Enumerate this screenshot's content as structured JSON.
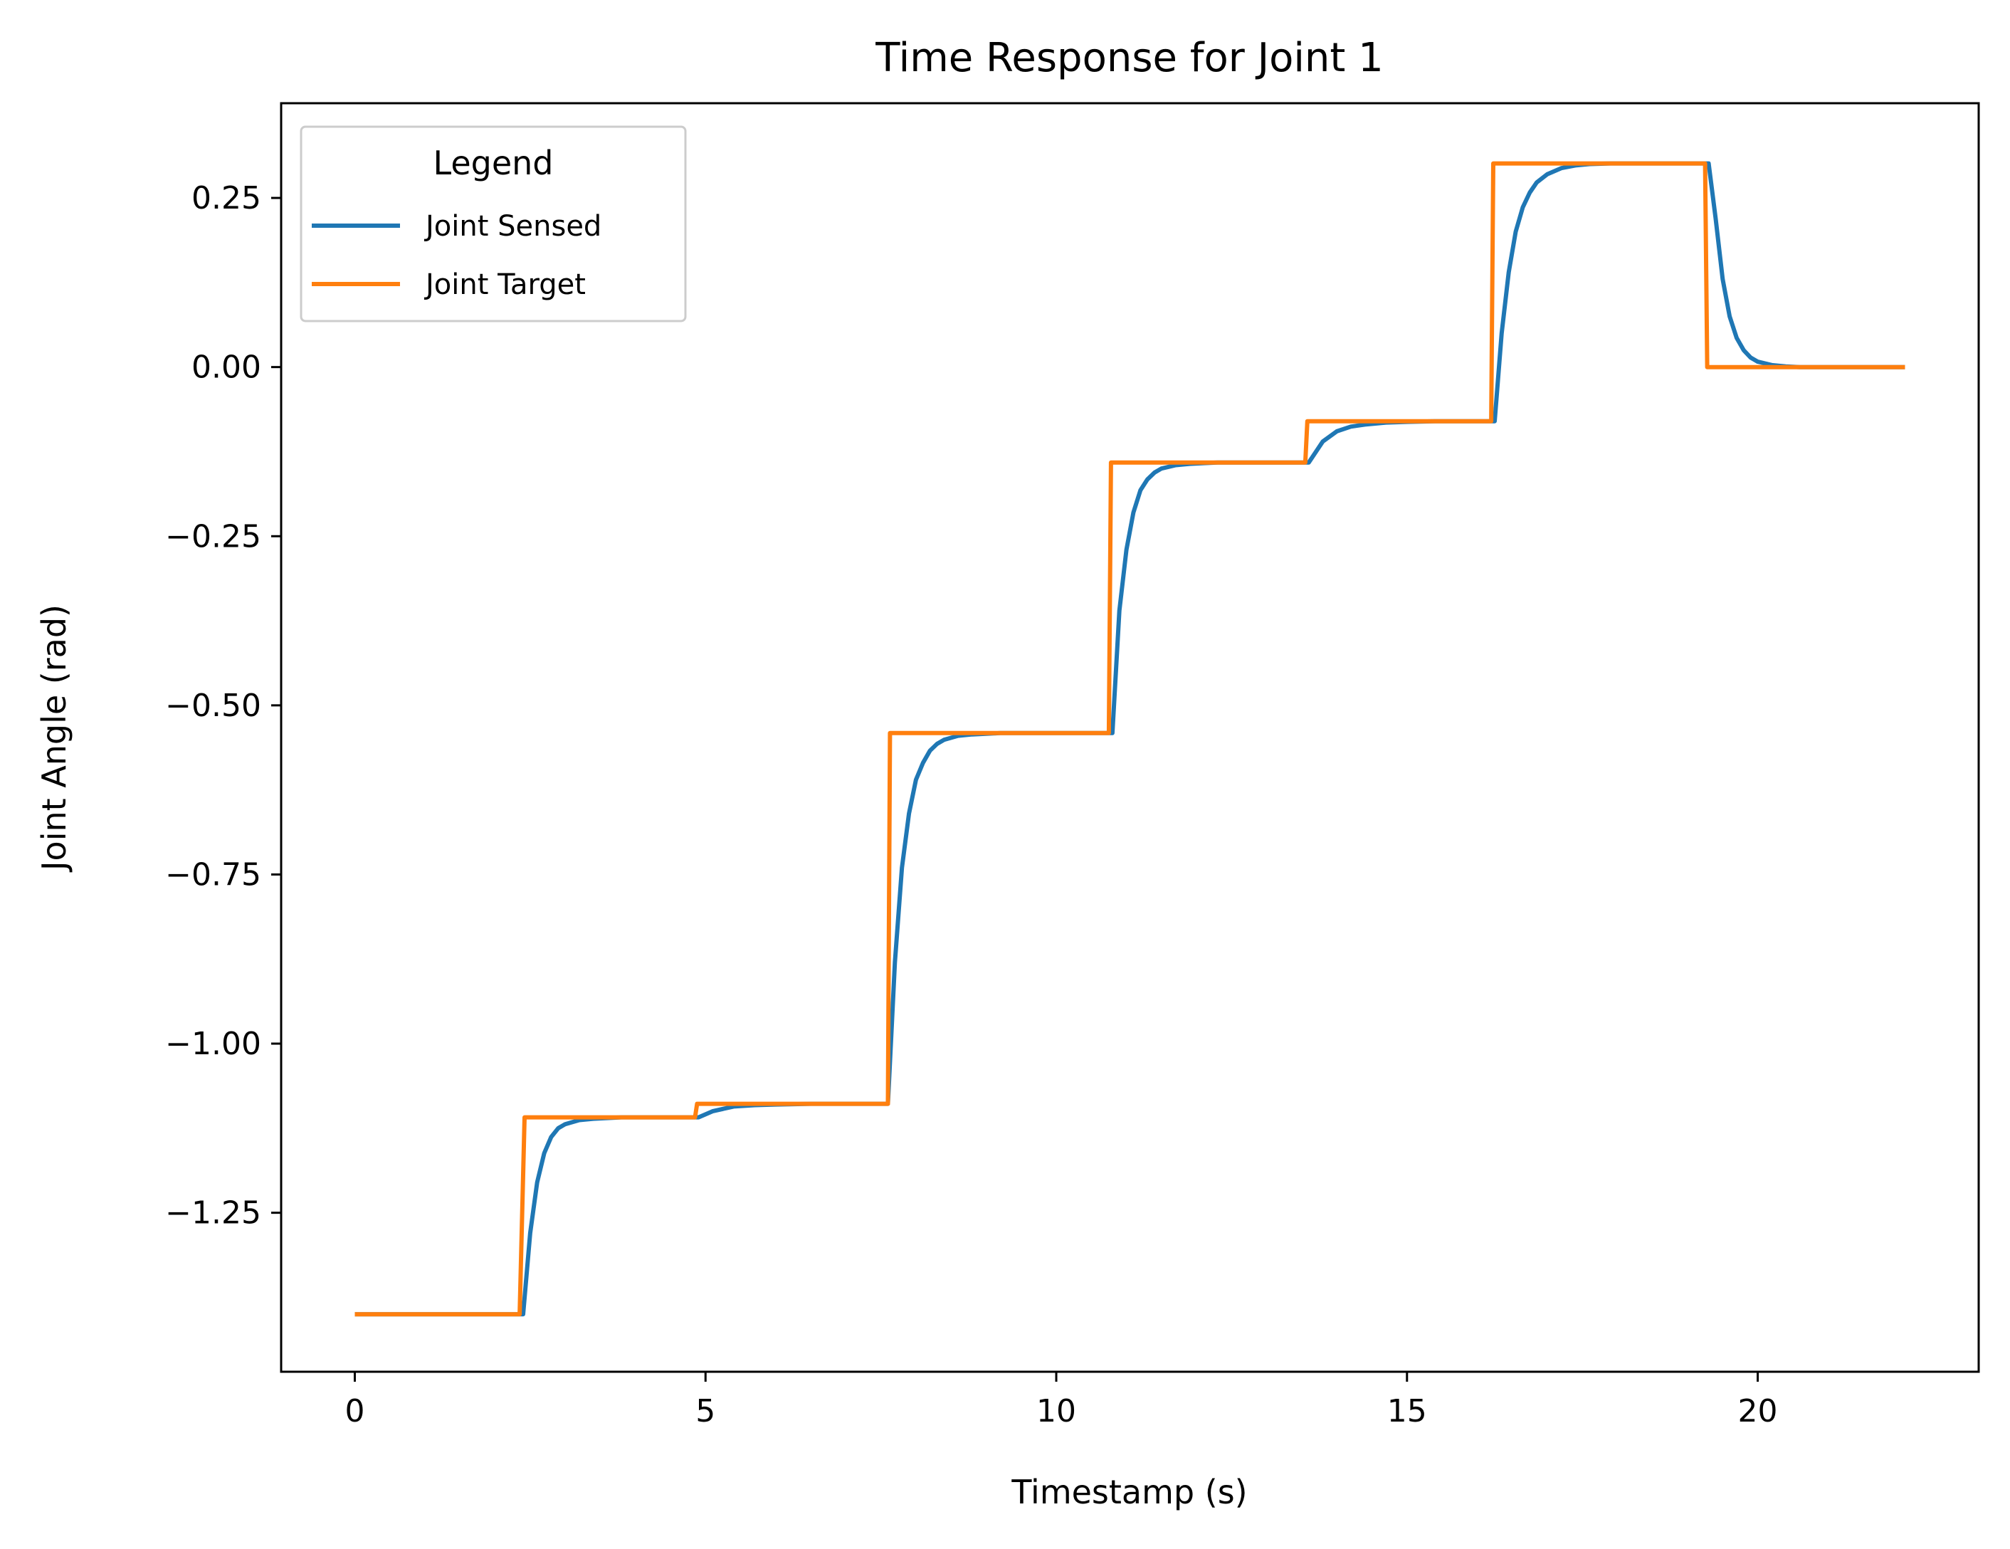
{
  "chart_data": {
    "type": "line",
    "title": "Time Response for Joint 1",
    "xlabel": "Timestamp (s)",
    "ylabel": "Joint Angle (rad)",
    "xlim": [
      -1.05,
      23.15
    ],
    "ylim": [
      -1.485,
      0.39
    ],
    "xticks": [
      0,
      5,
      10,
      15,
      20
    ],
    "xtick_labels": [
      "0",
      "5",
      "10",
      "15",
      "20"
    ],
    "yticks": [
      -1.25,
      -1.0,
      -0.75,
      -0.5,
      -0.25,
      0.0,
      0.25
    ],
    "ytick_labels": [
      "−1.25",
      "−1.00",
      "−0.75",
      "−0.50",
      "−0.25",
      "0.00",
      "0.25"
    ],
    "grid": false,
    "legend": {
      "title": "Legend",
      "position": "top-left"
    },
    "series": [
      {
        "name": "Joint Sensed",
        "color": "#1f77b4",
        "x": [
          0.0,
          2.4,
          2.5,
          2.6,
          2.7,
          2.8,
          2.9,
          3.0,
          3.2,
          3.4,
          3.6,
          3.8,
          4.1,
          4.4,
          4.7,
          4.9,
          5.1,
          5.4,
          5.7,
          6.0,
          6.5,
          7.0,
          7.6,
          7.7,
          7.8,
          7.9,
          8.0,
          8.1,
          8.2,
          8.3,
          8.4,
          8.6,
          8.8,
          9.0,
          9.2,
          9.5,
          9.8,
          10.2,
          10.8,
          10.9,
          11.0,
          11.1,
          11.2,
          11.3,
          11.4,
          11.5,
          11.7,
          11.9,
          12.1,
          12.3,
          12.6,
          12.9,
          13.2,
          13.6,
          13.8,
          14.0,
          14.2,
          14.4,
          14.7,
          15.0,
          15.4,
          15.8,
          16.25,
          16.35,
          16.45,
          16.55,
          16.65,
          16.75,
          16.85,
          17.0,
          17.2,
          17.4,
          17.6,
          17.9,
          18.2,
          18.6,
          19.0,
          19.3,
          19.4,
          19.5,
          19.6,
          19.7,
          19.8,
          19.9,
          20.0,
          20.2,
          20.4,
          20.6,
          20.8,
          21.1,
          21.5,
          22.1
        ],
        "y": [
          -1.4,
          -1.4,
          -1.28,
          -1.205,
          -1.162,
          -1.138,
          -1.125,
          -1.119,
          -1.113,
          -1.111,
          -1.11,
          -1.109,
          -1.109,
          -1.109,
          -1.109,
          -1.109,
          -1.1,
          -1.093,
          -1.091,
          -1.09,
          -1.089,
          -1.089,
          -1.089,
          -0.88,
          -0.74,
          -0.66,
          -0.61,
          -0.585,
          -0.567,
          -0.557,
          -0.551,
          -0.545,
          -0.543,
          -0.542,
          -0.541,
          -0.541,
          -0.541,
          -0.541,
          -0.541,
          -0.36,
          -0.27,
          -0.215,
          -0.182,
          -0.166,
          -0.156,
          -0.15,
          -0.145,
          -0.143,
          -0.142,
          -0.141,
          -0.141,
          -0.141,
          -0.141,
          -0.141,
          -0.11,
          -0.095,
          -0.088,
          -0.085,
          -0.082,
          -0.081,
          -0.08,
          -0.08,
          -0.08,
          0.05,
          0.14,
          0.2,
          0.236,
          0.258,
          0.273,
          0.285,
          0.294,
          0.298,
          0.3,
          0.301,
          0.301,
          0.301,
          0.301,
          0.301,
          0.22,
          0.13,
          0.075,
          0.043,
          0.025,
          0.014,
          0.008,
          0.003,
          0.001,
          0.0,
          0.0,
          0.0,
          0.0,
          0.0
        ]
      },
      {
        "name": "Joint Target",
        "color": "#ff7f0e",
        "x": [
          0.0,
          2.35,
          2.42,
          4.85,
          4.88,
          7.6,
          7.63,
          10.75,
          10.78,
          13.55,
          13.58,
          16.2,
          16.23,
          19.25,
          19.28,
          22.1
        ],
        "y": [
          -1.4,
          -1.4,
          -1.109,
          -1.109,
          -1.089,
          -1.089,
          -0.541,
          -0.541,
          -0.141,
          -0.141,
          -0.08,
          -0.08,
          0.301,
          0.301,
          0.0,
          0.0
        ]
      }
    ]
  }
}
